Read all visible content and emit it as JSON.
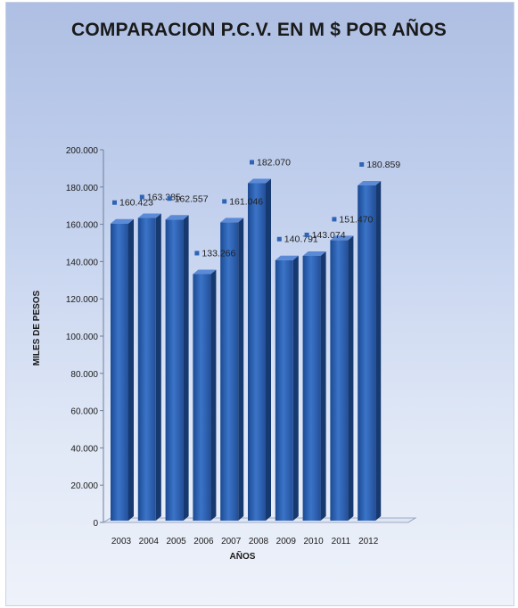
{
  "chart_data": {
    "type": "bar",
    "title": "COMPARACION P.C.V. EN   M $   POR  AÑOS",
    "xlabel": "AÑOS",
    "ylabel": "MILES DE PESOS",
    "categories": [
      "2003",
      "2004",
      "2005",
      "2006",
      "2007",
      "2008",
      "2009",
      "2010",
      "2011",
      "2012"
    ],
    "values": [
      160423,
      163385,
      162557,
      133266,
      161046,
      182070,
      140791,
      143074,
      151470,
      180859
    ],
    "data_labels": [
      "160.423",
      "163.385",
      "162.557",
      "133.266",
      "161.046",
      "182.070",
      "140.791",
      "143.074",
      "151.470",
      "180.859"
    ],
    "y_ticks": [
      "0",
      "20.000",
      "40.000",
      "60.000",
      "80.000",
      "100.000",
      "120.000",
      "140.000",
      "160.000",
      "180.000",
      "200.000"
    ],
    "ylim": [
      0,
      200000
    ],
    "grid": false,
    "legend": "none",
    "bar_color": "#2f64b4"
  }
}
